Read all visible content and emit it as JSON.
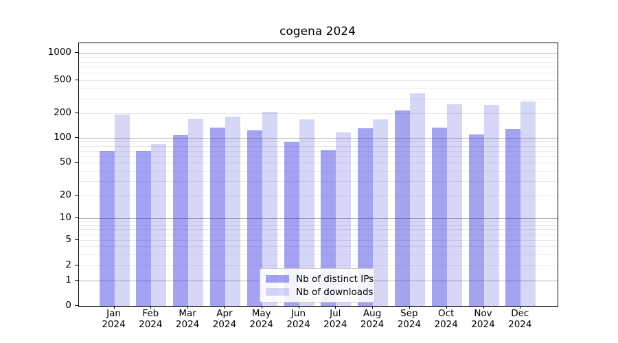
{
  "chart_data": {
    "type": "bar",
    "title": "cogena 2024",
    "xlabel": "",
    "ylabel": "",
    "y_scale": "symlog",
    "ylim": [
      0,
      1300
    ],
    "grid": true,
    "legend_position": "lower center",
    "categories": [
      "Jan 2024",
      "Feb 2024",
      "Mar 2024",
      "Apr 2024",
      "May 2024",
      "Jun 2024",
      "Jul 2024",
      "Aug 2024",
      "Sep 2024",
      "Oct 2024",
      "Nov 2024",
      "Dec 2024"
    ],
    "series": [
      {
        "name": "Nb of distinct IPs",
        "color": "rgba(35,35,225,0.42)",
        "values": [
          70,
          70,
          108,
          133,
          124,
          89,
          71,
          130,
          216,
          133,
          110,
          129
        ]
      },
      {
        "name": "Nb of downloads",
        "color": "rgba(25,25,205,0.18)",
        "values": [
          193,
          84,
          172,
          182,
          209,
          167,
          117,
          169,
          343,
          258,
          253,
          275
        ]
      }
    ],
    "y_axis": {
      "tick_values": [
        0,
        1,
        2,
        5,
        10,
        20,
        50,
        100,
        200,
        500,
        1000
      ],
      "tick_labels": [
        "0",
        "1",
        "2",
        "5",
        "10",
        "20",
        "50",
        "100",
        "200",
        "500",
        "1000"
      ],
      "major_grid_values": [
        1,
        10,
        100,
        1000
      ],
      "minor_grid_values": [
        2,
        3,
        4,
        5,
        6,
        7,
        8,
        9,
        20,
        30,
        40,
        50,
        60,
        70,
        80,
        90,
        200,
        300,
        400,
        500,
        600,
        700,
        800,
        900
      ]
    },
    "colors": {
      "major_grid": "#b3b3b3",
      "minor_grid": "#e8e8e8",
      "spine": "#000000"
    }
  }
}
